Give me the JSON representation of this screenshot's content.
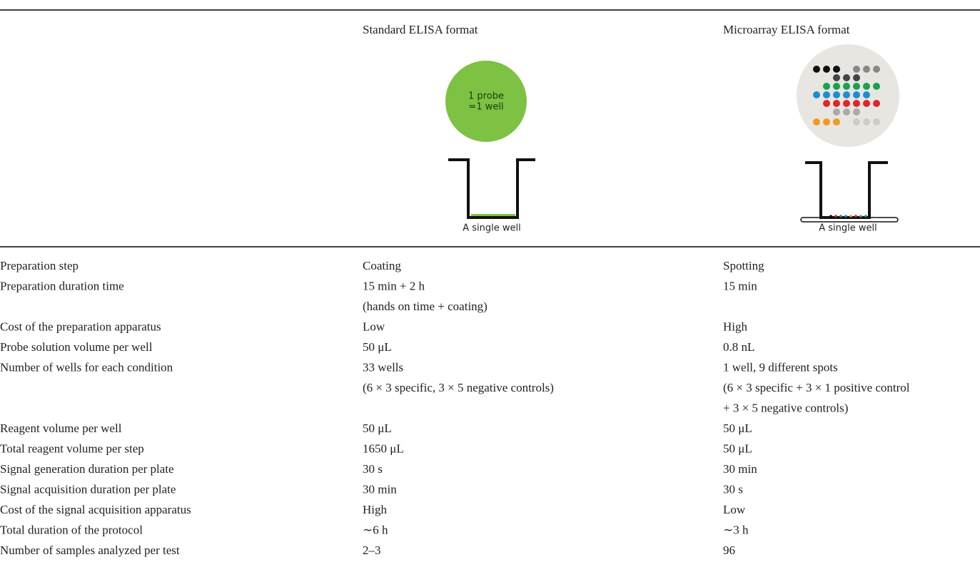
{
  "header": {
    "columns": [
      "",
      "Standard ELISA format",
      "Microarray ELISA format"
    ]
  },
  "figures": {
    "standard": {
      "circle_lines": [
        "1 probe",
        "=1 well"
      ],
      "caption": "A single well"
    },
    "microarray": {
      "caption": "A single well"
    }
  },
  "table": {
    "rows": [
      [
        "Preparation step",
        [
          "Coating"
        ],
        [
          "Spotting"
        ]
      ],
      [
        "Preparation duration time",
        [
          "15 min + 2 h",
          "(hands on time + coating)"
        ],
        [
          "15 min"
        ]
      ],
      [
        "Cost of the preparation apparatus",
        [
          "Low"
        ],
        [
          "High"
        ]
      ],
      [
        "Probe solution volume per well",
        [
          "50 μL"
        ],
        [
          "0.8 nL"
        ]
      ],
      [
        "Number of wells for each condition",
        [
          "33 wells",
          "(6 × 3 specific, 3 × 5 negative controls)"
        ],
        [
          "1 well, 9 different spots",
          "(6 × 3 specific + 3 × 1 positive control",
          "+ 3 × 5 negative controls)"
        ]
      ],
      [
        "Reagent volume per well",
        [
          "50 μL"
        ],
        [
          "50 μL"
        ]
      ],
      [
        "Total reagent volume per step",
        [
          "1650 μL"
        ],
        [
          "50 μL"
        ]
      ],
      [
        "Signal generation duration per plate",
        [
          "30 s"
        ],
        [
          "30 min"
        ]
      ],
      [
        "Signal acquisition duration per plate",
        [
          "30 min"
        ],
        [
          "30 s"
        ]
      ],
      [
        "Cost of the signal acquisition apparatus",
        [
          "High"
        ],
        [
          "Low"
        ]
      ],
      [
        "Total duration of the protocol",
        [
          "∼6 h"
        ],
        [
          "∼3 h"
        ]
      ],
      [
        "Number of samples analyzed per test",
        [
          "2–3"
        ],
        [
          "96"
        ]
      ]
    ]
  }
}
